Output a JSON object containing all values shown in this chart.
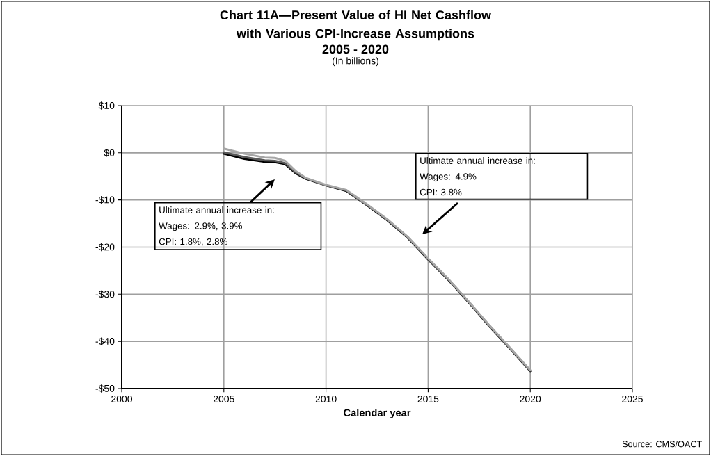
{
  "chart_data": {
    "type": "line",
    "title": "Chart 11A—Present Value of HI Net Cashflow with Various CPI-Increase Assumptions",
    "subtitle": "2005 - 2020",
    "xlabel": "Calendar year",
    "x": [
      2005,
      2006,
      2007,
      2007.5,
      2008,
      2008.5,
      2009,
      2010,
      2011,
      2012,
      2013,
      2014,
      2015,
      2016,
      2017,
      2018,
      2019,
      2020
    ],
    "series": [
      {
        "color": "#000000",
        "values": [
          -0.2,
          -1.3,
          -1.9,
          -2.0,
          -2.4,
          -4.3,
          -5.5,
          -6.9,
          -8.1,
          -11.1,
          -14.3,
          -18.0,
          -22.6,
          -27.0,
          -31.8,
          -36.8,
          -41.5,
          -46.3
        ]
      },
      {
        "color": "#595959",
        "values": [
          0.1,
          -0.9,
          -1.6,
          -1.7,
          -2.2,
          -4.1,
          -5.4,
          -6.9,
          -8.0,
          -11.0,
          -14.2,
          -17.9,
          -22.5,
          -26.9,
          -31.7,
          -36.7,
          -41.4,
          -46.2
        ]
      },
      {
        "color": "#a6a6a6",
        "values": [
          0.9,
          -0.2,
          -1.0,
          -1.1,
          -1.7,
          -3.8,
          -5.3,
          -6.8,
          -7.9,
          -10.9,
          -14.1,
          -17.8,
          -22.4,
          -26.8,
          -31.6,
          -36.6,
          -41.3,
          -46.1
        ]
      }
    ],
    "xlim": [
      2000,
      2025
    ],
    "xticks": [
      2000,
      2005,
      2010,
      2015,
      2020,
      2025
    ],
    "ylim": [
      -50,
      10
    ],
    "yticks": [
      {
        "value": -50,
        "label": "-$50"
      },
      {
        "value": -40,
        "label": "-$40"
      },
      {
        "value": -30,
        "label": "-$30"
      },
      {
        "value": -20,
        "label": "-$20"
      },
      {
        "value": -10,
        "label": "-$10"
      },
      {
        "value": 0,
        "label": "$0"
      },
      {
        "value": 10,
        "label": "$10"
      }
    ],
    "grid": true,
    "marker": "none",
    "line_style": "solid",
    "annotations": [
      "(In billions)",
      "Source: CMS/OACT",
      "Ultimate annual increase in:",
      "Wages:  2.9%, 3.9%",
      "CPI:  1.8%, 2.8%",
      "Ultimate annual increase in:",
      "Wages:  4.9%",
      "CPI:  3.8%"
    ]
  }
}
